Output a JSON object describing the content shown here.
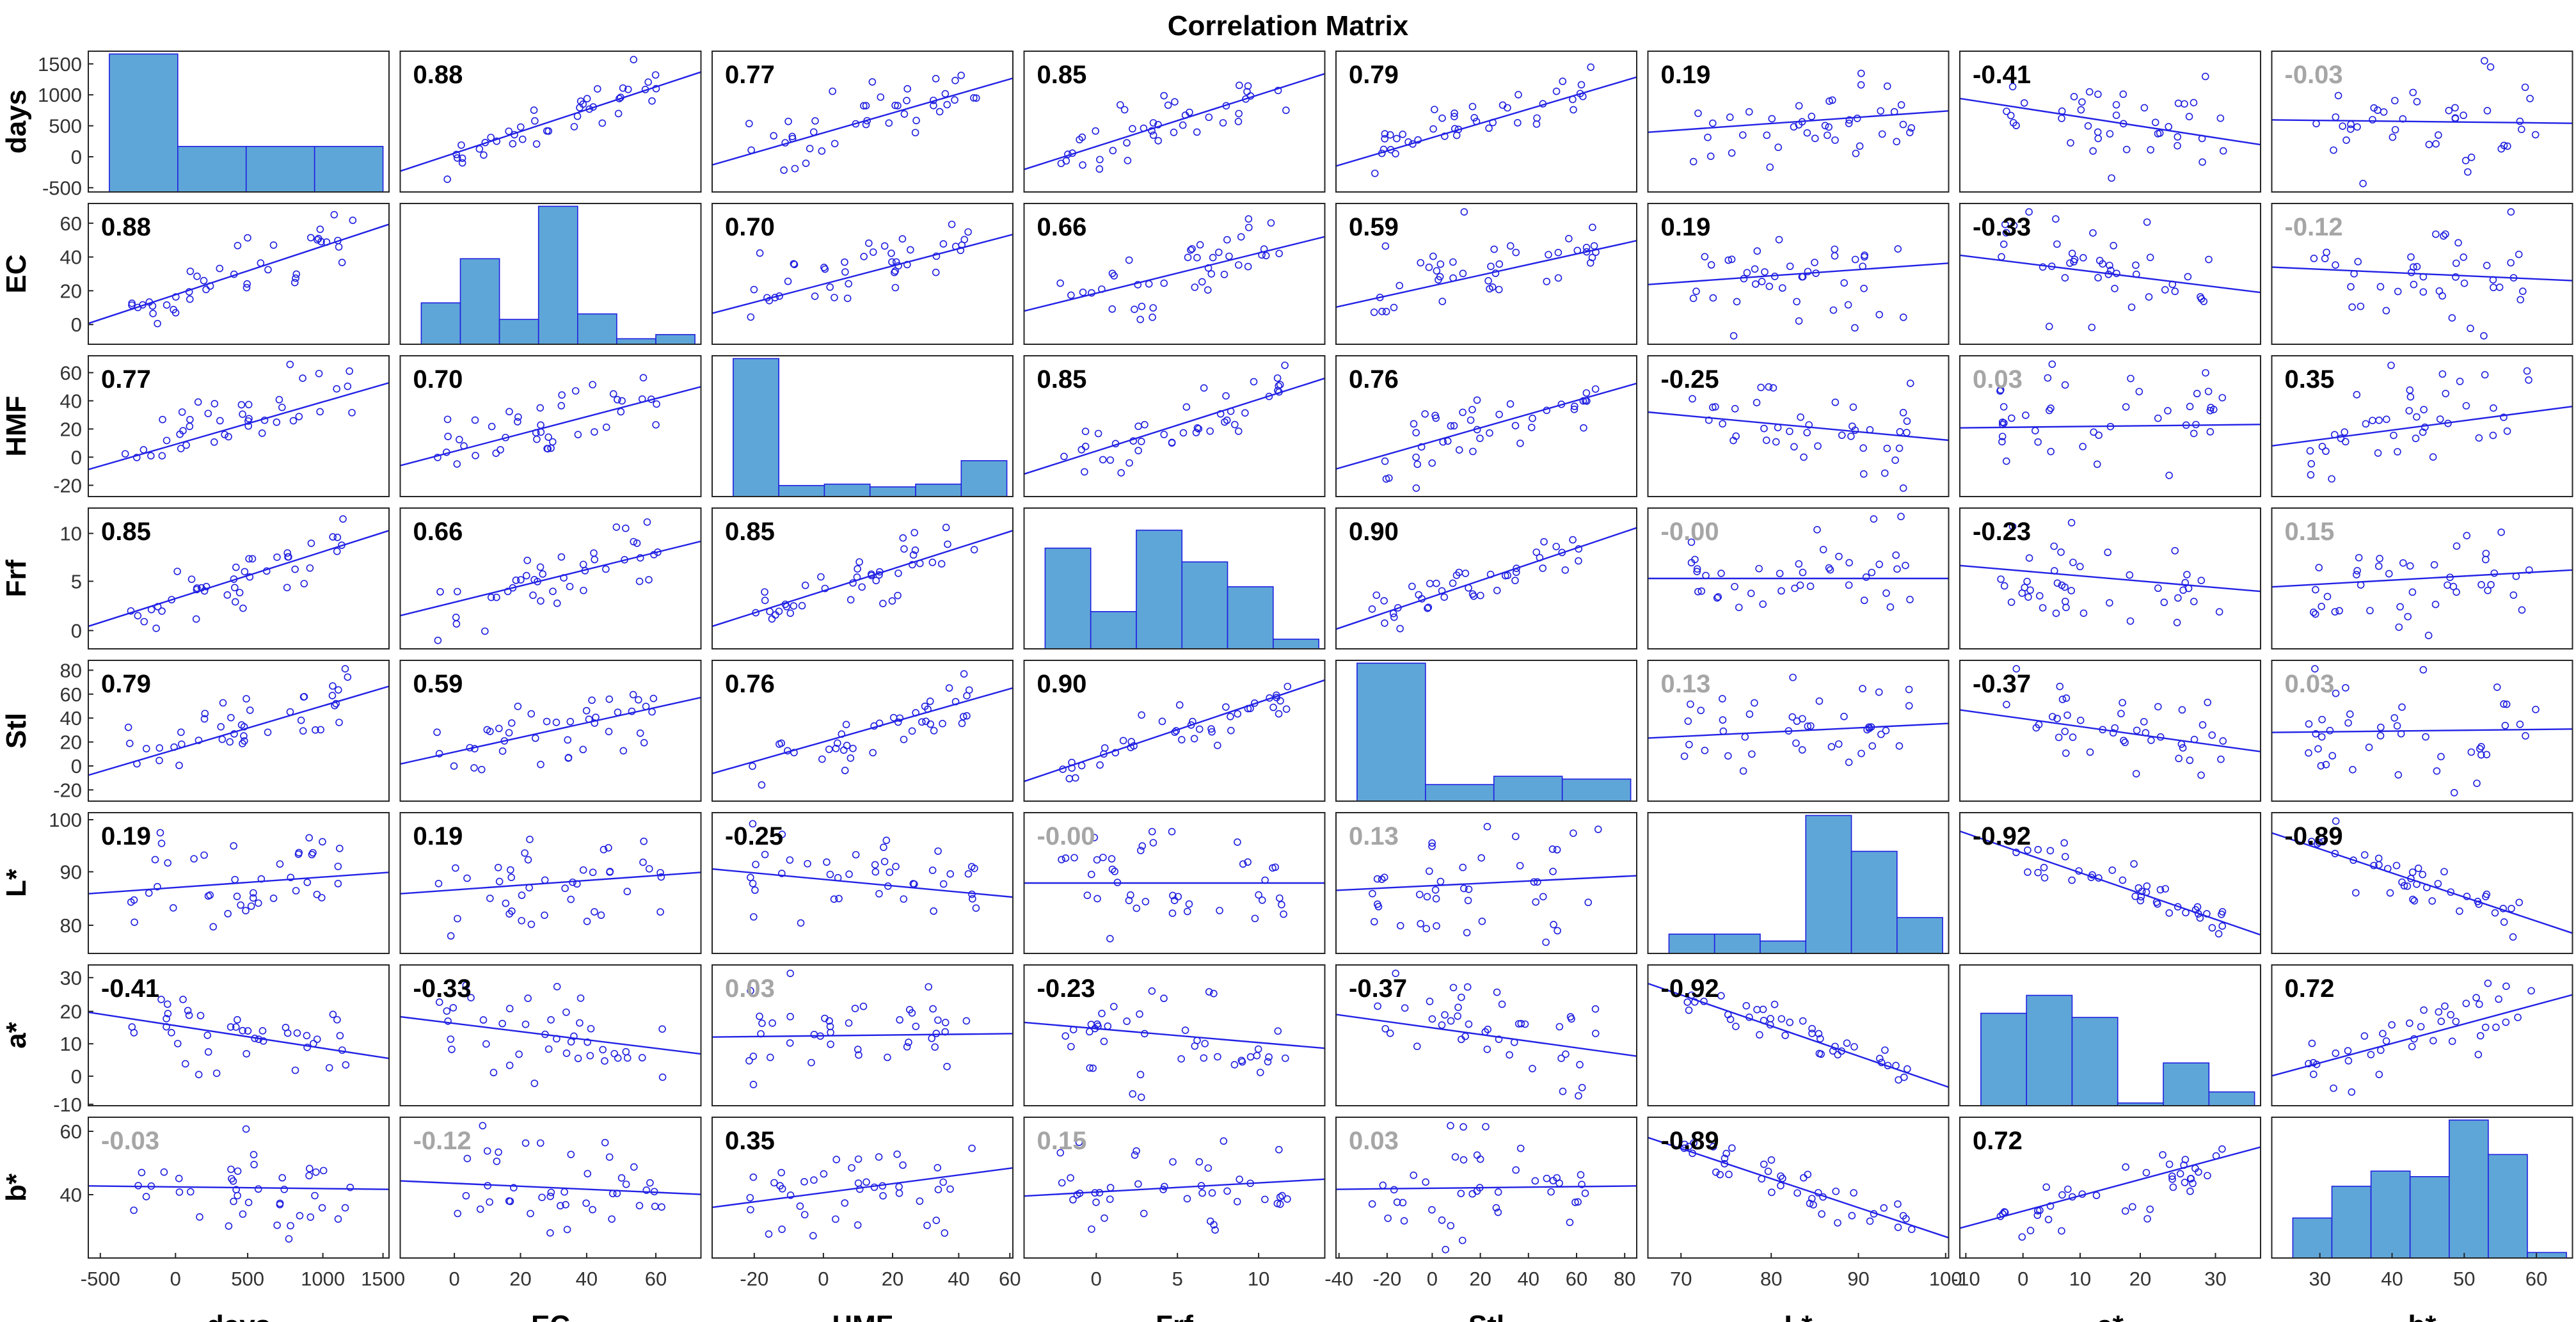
{
  "chart_data": {
    "type": "scatter_matrix",
    "title": "Correlation Matrix",
    "variables": [
      "days",
      "EC",
      "HMF",
      "Frf",
      "Stl",
      "L*",
      "a*",
      "b*"
    ],
    "row_ticks": [
      [
        "1500",
        "1000",
        "500",
        "0",
        "-500"
      ],
      [
        "60",
        "40",
        "20",
        "0"
      ],
      [
        "60",
        "40",
        "20",
        "0",
        "-20"
      ],
      [
        "10",
        "5",
        "0"
      ],
      [
        "80",
        "60",
        "40",
        "20",
        "0",
        "-20"
      ],
      [
        "100",
        "90",
        "80"
      ],
      [
        "30",
        "20",
        "10",
        "0",
        "-10"
      ],
      [
        "60",
        "40"
      ]
    ],
    "row_tick_fracs": [
      [
        0.09,
        0.31,
        0.53,
        0.75,
        0.97
      ],
      [
        0.14,
        0.38,
        0.62,
        0.86
      ],
      [
        0.12,
        0.32,
        0.52,
        0.72,
        0.92
      ],
      [
        0.18,
        0.52,
        0.87
      ],
      [
        0.07,
        0.24,
        0.41,
        0.58,
        0.75,
        0.92
      ],
      [
        0.05,
        0.42,
        0.8
      ],
      [
        0.09,
        0.33,
        0.56,
        0.79,
        0.99
      ],
      [
        0.1,
        0.55
      ]
    ],
    "col_ticks": [
      [
        "-500",
        "0",
        "500",
        "1000",
        "1500"
      ],
      [
        "0",
        "20",
        "40",
        "60"
      ],
      [
        "-20",
        "0",
        "20",
        "40",
        "60"
      ],
      [
        "0",
        "5",
        "10"
      ],
      [
        "-40",
        "-20",
        "0",
        "20",
        "40",
        "60",
        "80"
      ],
      [
        "70",
        "80",
        "90",
        "100"
      ],
      [
        "-10",
        "0",
        "10",
        "20",
        "30"
      ],
      [
        "30",
        "40",
        "50",
        "60"
      ]
    ],
    "col_tick_fracs": [
      [
        0.04,
        0.29,
        0.53,
        0.78,
        0.98
      ],
      [
        0.18,
        0.4,
        0.62,
        0.85
      ],
      [
        0.14,
        0.37,
        0.6,
        0.82,
        0.99
      ],
      [
        0.24,
        0.51,
        0.78
      ],
      [
        0.01,
        0.17,
        0.32,
        0.48,
        0.64,
        0.8,
        0.96
      ],
      [
        0.11,
        0.41,
        0.7,
        0.99
      ],
      [
        0.02,
        0.21,
        0.4,
        0.6,
        0.85
      ],
      [
        0.16,
        0.4,
        0.64,
        0.88
      ]
    ],
    "correlations": [
      [
        null,
        0.88,
        0.77,
        0.85,
        0.79,
        0.19,
        -0.41,
        -0.03
      ],
      [
        0.88,
        null,
        0.7,
        0.66,
        0.59,
        0.19,
        -0.33,
        -0.12
      ],
      [
        0.77,
        0.7,
        null,
        0.85,
        0.76,
        -0.25,
        0.03,
        0.35
      ],
      [
        0.85,
        0.66,
        0.85,
        null,
        0.9,
        -0.0,
        -0.23,
        0.15
      ],
      [
        0.79,
        0.59,
        0.76,
        0.9,
        null,
        0.13,
        -0.37,
        0.03
      ],
      [
        0.19,
        0.19,
        -0.25,
        -0.0,
        0.13,
        null,
        -0.92,
        -0.89
      ],
      [
        -0.41,
        -0.33,
        0.03,
        -0.23,
        -0.37,
        -0.92,
        null,
        0.72
      ],
      [
        -0.03,
        -0.12,
        0.35,
        0.15,
        0.03,
        -0.89,
        0.72,
        null
      ]
    ],
    "correlation_labels": [
      [
        "",
        "0.88",
        "0.77",
        "0.85",
        "0.79",
        "0.19",
        "-0.41",
        "-0.03"
      ],
      [
        "0.88",
        "",
        "0.70",
        "0.66",
        "0.59",
        "0.19",
        "-0.33",
        "-0.12"
      ],
      [
        "0.77",
        "0.70",
        "",
        "0.85",
        "0.76",
        "-0.25",
        "0.03",
        "0.35"
      ],
      [
        "0.85",
        "0.66",
        "0.85",
        "",
        "0.90",
        "-0.00",
        "-0.23",
        "0.15"
      ],
      [
        "0.79",
        "0.59",
        "0.76",
        "0.90",
        "",
        "0.13",
        "-0.37",
        "0.03"
      ],
      [
        "0.19",
        "0.19",
        "-0.25",
        "-0.00",
        "0.13",
        "",
        "-0.92",
        "-0.89"
      ],
      [
        "-0.41",
        "-0.33",
        "0.03",
        "-0.23",
        "-0.37",
        "-0.92",
        "",
        "0.72"
      ],
      [
        "-0.03",
        "-0.12",
        "0.35",
        "0.15",
        "0.03",
        "-0.89",
        "0.72",
        ""
      ]
    ],
    "significant": [
      [
        null,
        true,
        true,
        true,
        true,
        true,
        true,
        false
      ],
      [
        true,
        null,
        true,
        true,
        true,
        true,
        true,
        false
      ],
      [
        true,
        true,
        null,
        true,
        true,
        true,
        false,
        true
      ],
      [
        true,
        true,
        true,
        null,
        true,
        false,
        true,
        false
      ],
      [
        true,
        true,
        true,
        true,
        null,
        false,
        true,
        false
      ],
      [
        true,
        true,
        true,
        false,
        false,
        null,
        true,
        true
      ],
      [
        true,
        true,
        false,
        true,
        true,
        true,
        null,
        true
      ],
      [
        false,
        false,
        true,
        false,
        false,
        true,
        true,
        null
      ]
    ],
    "histograms": [
      [
        1.0,
        0.33,
        0.33,
        0.33
      ],
      [
        0.3,
        0.62,
        0.18,
        1.0,
        0.22,
        0.04,
        0.07
      ],
      [
        1.0,
        0.08,
        0.09,
        0.07,
        0.09,
        0.26
      ],
      [
        0.73,
        0.27,
        0.86,
        0.63,
        0.45,
        0.07
      ],
      [
        1.0,
        0.12,
        0.18,
        0.16
      ],
      [
        0.14,
        0.14,
        0.09,
        1.0,
        0.74,
        0.26
      ],
      [
        0.67,
        0.8,
        0.64,
        0.02,
        0.31,
        0.1
      ],
      [
        0.29,
        0.52,
        0.63,
        0.59,
        1.0,
        0.75,
        0.04
      ]
    ],
    "colors": {
      "marker": "#1f1fe0",
      "fit_line": "#2222e6",
      "hist_fill": "#5fa6d8",
      "hist_edge": "#1f1fe0",
      "significant_text": "#000000",
      "nonsignificant_text": "#a6a6a6"
    }
  }
}
